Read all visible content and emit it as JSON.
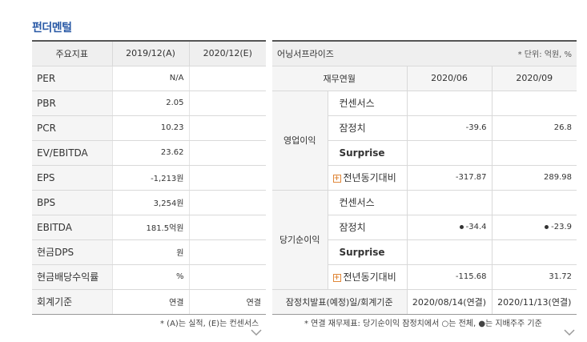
{
  "title": "펀더멘털",
  "left": {
    "headers": [
      "주요지표",
      "2019/12(A)",
      "2020/12(E)"
    ],
    "rows": [
      {
        "label": "PER",
        "a": "N/A",
        "e": ""
      },
      {
        "label": "PBR",
        "a": "2.05",
        "e": ""
      },
      {
        "label": "PCR",
        "a": "10.23",
        "e": ""
      },
      {
        "label": "EV/EBITDA",
        "a": "23.62",
        "e": ""
      },
      {
        "label": "EPS",
        "a": "-1,213원",
        "e": ""
      },
      {
        "label": "BPS",
        "a": "3,254원",
        "e": ""
      },
      {
        "label": "EBITDA",
        "a": "181.5억원",
        "e": ""
      },
      {
        "label": "현금DPS",
        "a": "원",
        "e": ""
      },
      {
        "label": "현금배당수익률",
        "a": "%",
        "e": ""
      },
      {
        "label": "회계기준",
        "a": "연결",
        "e": "연결"
      }
    ],
    "footnote": "* (A)는 실적, (E)는 컨센서스"
  },
  "right": {
    "company": "어닝서프라이즈",
    "unit": "* 단위: 억원, %",
    "col_headers": [
      "재무연월",
      "2020/06",
      "2020/09"
    ],
    "groups": [
      {
        "name": "영업이익",
        "rows": [
          {
            "label": "컨센서스",
            "v1": "",
            "v2": ""
          },
          {
            "label": "잠정치",
            "v1": "-39.6",
            "v2": "26.8"
          },
          {
            "label": "Surprise",
            "v1": "",
            "v2": ""
          },
          {
            "label": "전년동기대비",
            "v1": "-317.87",
            "v2": "289.98"
          }
        ]
      },
      {
        "name": "당기순이익",
        "rows": [
          {
            "label": "컨센서스",
            "v1": "",
            "v2": ""
          },
          {
            "label": "잠정치",
            "v1": "-34.4",
            "v2": "-23.9"
          },
          {
            "label": "Surprise",
            "v1": "",
            "v2": ""
          },
          {
            "label": "전년동기대비",
            "v1": "-115.68",
            "v2": "31.72"
          }
        ]
      }
    ],
    "last_row": {
      "label": "잠정치발표(예정)일/회계기준",
      "v1": "2020/08/14(연결)",
      "v2": "2020/11/13(연결)"
    },
    "footnote": "* 연결 재무제표: 당기순이익 잠정치에서 ○는 전체, ●는 지배주주 기준"
  },
  "colors": {
    "title": "#2a5aa6",
    "accent": "#e0883a"
  }
}
